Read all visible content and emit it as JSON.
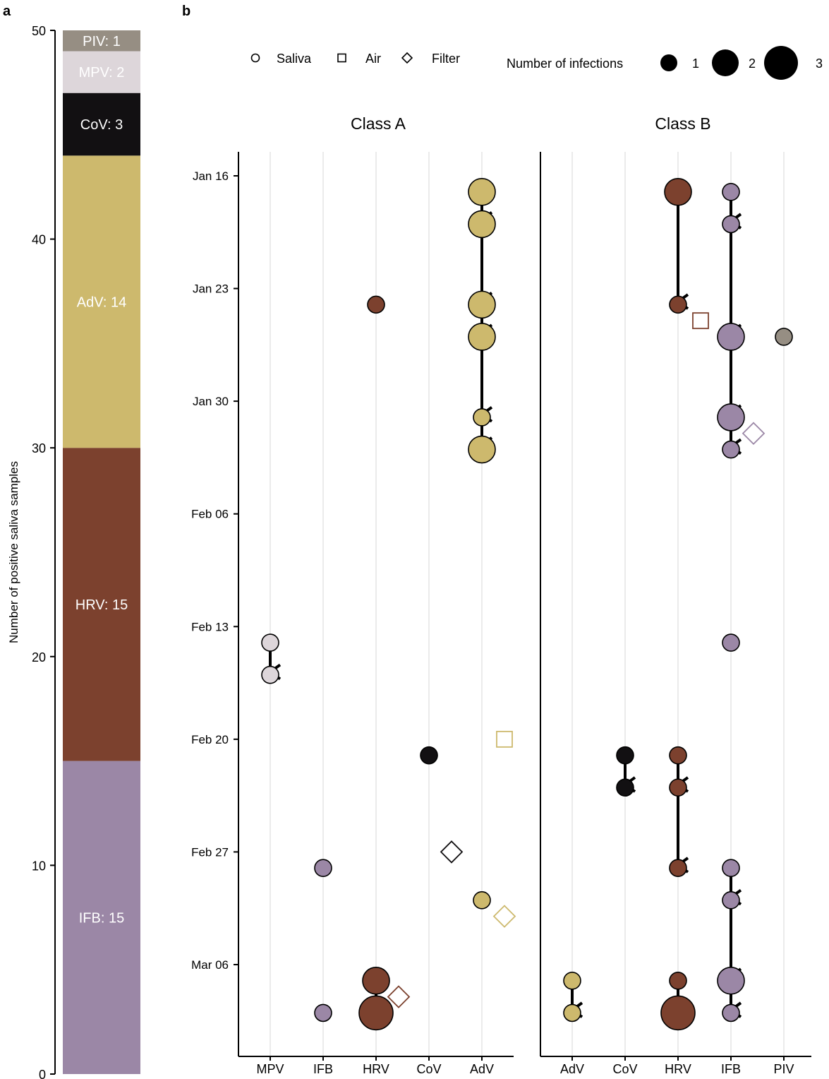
{
  "panel_labels": {
    "a": "a",
    "b": "b"
  },
  "colors": {
    "PIV": "#968e83",
    "MPV": "#ddd6da",
    "CoV": "#121012",
    "AdV": "#cdb96d",
    "HRV": "#7c412e",
    "IFB": "#9b87a6"
  },
  "chart_data": [
    {
      "type": "bar",
      "stacked": true,
      "ylabel": "Number of positive saliva samples",
      "ylim": [
        0,
        50
      ],
      "yticks": [
        "0",
        "10",
        "20",
        "30",
        "40",
        "50"
      ],
      "segments": [
        {
          "virus": "IFB",
          "value": 15,
          "label": "IFB: 15"
        },
        {
          "virus": "HRV",
          "value": 15,
          "label": "HRV: 15"
        },
        {
          "virus": "AdV",
          "value": 14,
          "label": "AdV: 14"
        },
        {
          "virus": "CoV",
          "value": 3,
          "label": "CoV: 3"
        },
        {
          "virus": "MPV",
          "value": 2,
          "label": "MPV: 2"
        },
        {
          "virus": "PIV",
          "value": 1,
          "label": "PIV: 1"
        }
      ]
    },
    {
      "type": "scatter",
      "legend": {
        "sample_types": [
          "Saliva",
          "Air",
          "Filter"
        ],
        "size_title": "Number of infections",
        "size_values": [
          "1",
          "2",
          "3"
        ]
      },
      "y_axis": {
        "type": "date",
        "ticks": [
          "Jan 16",
          "Jan 23",
          "Jan 30",
          "Feb 06",
          "Feb 13",
          "Feb 20",
          "Feb 27",
          "Mar 06"
        ],
        "tick_days": [
          0,
          7,
          14,
          21,
          28,
          35,
          42,
          49
        ]
      },
      "facets": [
        {
          "title": "Class A",
          "categories": [
            "MPV",
            "IFB",
            "HRV",
            "CoV",
            "AdV"
          ],
          "points": [
            {
              "x": "AdV",
              "day": 1,
              "type": "Saliva",
              "n": 2
            },
            {
              "x": "AdV",
              "day": 3,
              "type": "Saliva",
              "n": 2
            },
            {
              "x": "AdV",
              "day": 8,
              "type": "Saliva",
              "n": 2
            },
            {
              "x": "AdV",
              "day": 10,
              "type": "Saliva",
              "n": 2
            },
            {
              "x": "AdV",
              "day": 15,
              "type": "Saliva",
              "n": 1
            },
            {
              "x": "AdV",
              "day": 17,
              "type": "Saliva",
              "n": 2
            },
            {
              "x": "HRV",
              "day": 8,
              "type": "Saliva",
              "n": 1
            },
            {
              "x": "MPV",
              "day": 29,
              "type": "Saliva",
              "n": 1
            },
            {
              "x": "MPV",
              "day": 31,
              "type": "Saliva",
              "n": 1
            },
            {
              "x": "CoV",
              "day": 36,
              "type": "Saliva",
              "n": 1
            },
            {
              "x": "IFB",
              "day": 43,
              "type": "Saliva",
              "n": 1
            },
            {
              "x": "AdV",
              "day": 45,
              "type": "Saliva",
              "n": 1
            },
            {
              "x": "HRV",
              "day": 50,
              "type": "Saliva",
              "n": 2
            },
            {
              "x": "IFB",
              "day": 52,
              "type": "Saliva",
              "n": 1
            },
            {
              "x": "HRV",
              "day": 52,
              "type": "Saliva",
              "n": 3
            },
            {
              "x": "AdV",
              "day": 35,
              "type": "Air",
              "virus": "AdV"
            },
            {
              "x": "CoV",
              "day": 42,
              "type": "Filter",
              "virus": "CoV"
            },
            {
              "x": "AdV",
              "day": 46,
              "type": "Filter",
              "virus": "AdV"
            },
            {
              "x": "HRV",
              "day": 51,
              "type": "Filter",
              "virus": "HRV"
            }
          ],
          "arrows": [
            {
              "x": "AdV",
              "from": 1,
              "to": 3
            },
            {
              "x": "AdV",
              "from": 3,
              "to": 8
            },
            {
              "x": "AdV",
              "from": 8,
              "to": 10
            },
            {
              "x": "AdV",
              "from": 10,
              "to": 15
            },
            {
              "x": "AdV",
              "from": 15,
              "to": 17
            },
            {
              "x": "MPV",
              "from": 29,
              "to": 31
            },
            {
              "x": "HRV",
              "from": 50,
              "to": 52
            }
          ]
        },
        {
          "title": "Class B",
          "categories": [
            "AdV",
            "CoV",
            "HRV",
            "IFB",
            "PIV"
          ],
          "points": [
            {
              "x": "HRV",
              "day": 1,
              "type": "Saliva",
              "n": 2
            },
            {
              "x": "HRV",
              "day": 8,
              "type": "Saliva",
              "n": 1
            },
            {
              "x": "IFB",
              "day": 1,
              "type": "Saliva",
              "n": 1
            },
            {
              "x": "IFB",
              "day": 3,
              "type": "Saliva",
              "n": 1
            },
            {
              "x": "IFB",
              "day": 10,
              "type": "Saliva",
              "n": 2
            },
            {
              "x": "IFB",
              "day": 15,
              "type": "Saliva",
              "n": 2
            },
            {
              "x": "IFB",
              "day": 17,
              "type": "Saliva",
              "n": 1
            },
            {
              "x": "PIV",
              "day": 10,
              "type": "Saliva",
              "n": 1
            },
            {
              "x": "IFB",
              "day": 29,
              "type": "Saliva",
              "n": 1
            },
            {
              "x": "CoV",
              "day": 36,
              "type": "Saliva",
              "n": 1
            },
            {
              "x": "CoV",
              "day": 38,
              "type": "Saliva",
              "n": 1
            },
            {
              "x": "HRV",
              "day": 36,
              "type": "Saliva",
              "n": 1
            },
            {
              "x": "HRV",
              "day": 38,
              "type": "Saliva",
              "n": 1
            },
            {
              "x": "HRV",
              "day": 43,
              "type": "Saliva",
              "n": 1
            },
            {
              "x": "IFB",
              "day": 43,
              "type": "Saliva",
              "n": 1
            },
            {
              "x": "IFB",
              "day": 45,
              "type": "Saliva",
              "n": 1
            },
            {
              "x": "AdV",
              "day": 50,
              "type": "Saliva",
              "n": 1
            },
            {
              "x": "AdV",
              "day": 52,
              "type": "Saliva",
              "n": 1
            },
            {
              "x": "HRV",
              "day": 50,
              "type": "Saliva",
              "n": 1
            },
            {
              "x": "HRV",
              "day": 52,
              "type": "Saliva",
              "n": 3
            },
            {
              "x": "IFB",
              "day": 50,
              "type": "Saliva",
              "n": 2
            },
            {
              "x": "IFB",
              "day": 52,
              "type": "Saliva",
              "n": 1
            },
            {
              "x": "HRV",
              "day": 9,
              "type": "Air",
              "virus": "HRV"
            },
            {
              "x": "IFB",
              "day": 16,
              "type": "Filter",
              "virus": "IFB"
            }
          ],
          "arrows": [
            {
              "x": "HRV",
              "from": 1,
              "to": 8
            },
            {
              "x": "IFB",
              "from": 1,
              "to": 3
            },
            {
              "x": "IFB",
              "from": 3,
              "to": 10
            },
            {
              "x": "IFB",
              "from": 10,
              "to": 15
            },
            {
              "x": "IFB",
              "from": 15,
              "to": 17
            },
            {
              "x": "CoV",
              "from": 36,
              "to": 38
            },
            {
              "x": "HRV",
              "from": 36,
              "to": 38
            },
            {
              "x": "HRV",
              "from": 38,
              "to": 43
            },
            {
              "x": "IFB",
              "from": 43,
              "to": 45
            },
            {
              "x": "IFB",
              "from": 45,
              "to": 50
            },
            {
              "x": "IFB",
              "from": 50,
              "to": 52
            },
            {
              "x": "AdV",
              "from": 50,
              "to": 52
            },
            {
              "x": "HRV",
              "from": 50,
              "to": 52
            }
          ]
        }
      ]
    }
  ]
}
